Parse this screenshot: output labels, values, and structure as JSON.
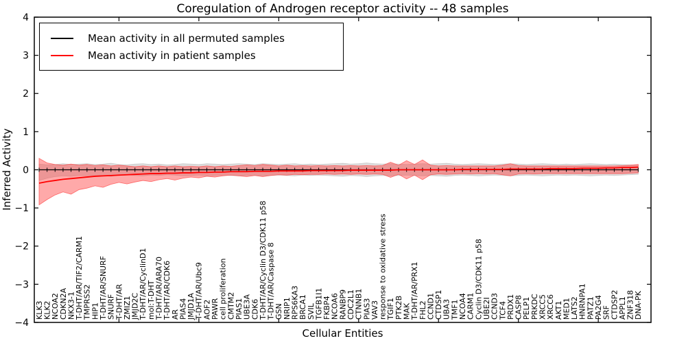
{
  "title": "Coregulation of Androgen receptor activity -- 48 samples",
  "axes": {
    "ylabel": "Inferred Activity",
    "xlabel": "Cellular Entities",
    "yticks": [
      4,
      3,
      2,
      1,
      0,
      -1,
      -2,
      -3,
      -4
    ],
    "ytick_labels": [
      "4",
      "3",
      "2",
      "1",
      "0",
      "−1",
      "−2",
      "−3",
      "−4"
    ]
  },
  "legend": {
    "entries": [
      {
        "label": "Mean activity in all permuted samples",
        "color": "#000000"
      },
      {
        "label": "Mean activity in patient samples",
        "color": "#ff0000"
      }
    ]
  },
  "colors": {
    "frame": "#000000",
    "background": "#ffffff",
    "permuted_line": "#000000",
    "patient_line": "#ff0000",
    "permuted_band": "#9e9e9e",
    "patient_band": "#ff4040"
  },
  "chart_data": {
    "type": "line",
    "title": "Coregulation of Androgen receptor activity -- 48 samples",
    "xlabel": "Cellular Entities",
    "ylabel": "Inferred Activity",
    "ylim": [
      -4,
      4
    ],
    "grid": false,
    "legend_position": "upper left",
    "categories": [
      "KLK3",
      "KLK2",
      "NCOA2",
      "CDKN2A",
      "NKX3-1",
      "T-DHT/AR/TIF2/CARM1",
      "TMPRSS2",
      "HIP1",
      "T-DHT/AR/SNURF",
      "SNURF",
      "T-DHT/AR",
      "ZMIZ1",
      "JMJD2C",
      "T-DHT/AR/CyclinD1",
      "mol:T-DHT",
      "T-DHT/AR/ARA70",
      "T-DHT/AR/CDK6",
      "AR",
      "PIAS4",
      "JMJD1A",
      "T-DHT/AR/Ubc9",
      "AOF2",
      "PAWR",
      "cell proliferation",
      "CMTM2",
      "PIAS1",
      "UBE3A",
      "CDK6",
      "T-DHT/AR/Cyclin D3/CDK11 p58",
      "T-DHT/AR/Caspase 8",
      "GSN",
      "NRIP1",
      "RPS6KA3",
      "BRCA1",
      "SVIL",
      "TGFB1I1",
      "FKBP4",
      "NCOA6",
      "RANBP9",
      "CDC2L1",
      "CTNNB1",
      "PIAS3",
      "VAV3",
      "response to oxidative stress",
      "TGIF1",
      "PTK2B",
      "MAK",
      "T-DHT/AR/PRX1",
      "FHL2",
      "CCND1",
      "CTDSP1",
      "UBA3",
      "TMF1",
      "NCOA4",
      "CARM1",
      "Cyclin D3/CDK11 p58",
      "UBE2I",
      "CCND3",
      "TCF4",
      "PRDX1",
      "CASP8",
      "PELP1",
      "PRKDC",
      "XRCC5",
      "XRCC6",
      "AKT1",
      "MED1",
      "LATS2",
      "HNRNPA1",
      "PATZ1",
      "PA2G4",
      "SRF",
      "CTDSP2",
      "APPL1",
      "ZNF318",
      "DNA-PK"
    ],
    "series": [
      {
        "name": "Mean activity in all permuted samples",
        "color": "#000000",
        "band_color": "#9e9e9e",
        "marker": "vertical-dash",
        "values": [
          0,
          0,
          0,
          0,
          0,
          0,
          0,
          0,
          0,
          0,
          0,
          0,
          0,
          0,
          0,
          0,
          0,
          0,
          0,
          0,
          0,
          0,
          0,
          0,
          0,
          0,
          0,
          0,
          0,
          0,
          0,
          0,
          0,
          0,
          0,
          0,
          0,
          0,
          0,
          0,
          0,
          0,
          0,
          0,
          0,
          0,
          0,
          0,
          0,
          0,
          0,
          0,
          0,
          0,
          0,
          0,
          0,
          0,
          0,
          0,
          0,
          0,
          0,
          0,
          0,
          0,
          0,
          0,
          0,
          0,
          0,
          0,
          0,
          0,
          0,
          0
        ],
        "band_upper": [
          0.15,
          0.13,
          0.14,
          0.16,
          0.14,
          0.15,
          0.16,
          0.14,
          0.15,
          0.17,
          0.14,
          0.13,
          0.15,
          0.16,
          0.14,
          0.15,
          0.13,
          0.14,
          0.16,
          0.15,
          0.14,
          0.16,
          0.15,
          0.14,
          0.15,
          0.16,
          0.15,
          0.14,
          0.16,
          0.15,
          0.14,
          0.15,
          0.16,
          0.14,
          0.15,
          0.14,
          0.15,
          0.16,
          0.17,
          0.15,
          0.16,
          0.18,
          0.16,
          0.15,
          0.16,
          0.15,
          0.14,
          0.15,
          0.16,
          0.15,
          0.16,
          0.17,
          0.15,
          0.14,
          0.15,
          0.16,
          0.15,
          0.14,
          0.15,
          0.16,
          0.15,
          0.14,
          0.15,
          0.16,
          0.15,
          0.14,
          0.15,
          0.14,
          0.15,
          0.16,
          0.15,
          0.14,
          0.15,
          0.14,
          0.13,
          0.12
        ],
        "band_lower": [
          -0.28,
          -0.22,
          -0.18,
          -0.16,
          -0.17,
          -0.15,
          -0.16,
          -0.14,
          -0.15,
          -0.17,
          -0.14,
          -0.13,
          -0.15,
          -0.16,
          -0.14,
          -0.15,
          -0.13,
          -0.14,
          -0.16,
          -0.15,
          -0.14,
          -0.16,
          -0.15,
          -0.14,
          -0.15,
          -0.16,
          -0.15,
          -0.14,
          -0.16,
          -0.15,
          -0.14,
          -0.15,
          -0.16,
          -0.14,
          -0.15,
          -0.14,
          -0.15,
          -0.16,
          -0.17,
          -0.15,
          -0.16,
          -0.18,
          -0.16,
          -0.15,
          -0.16,
          -0.15,
          -0.14,
          -0.15,
          -0.16,
          -0.15,
          -0.16,
          -0.17,
          -0.15,
          -0.14,
          -0.15,
          -0.16,
          -0.15,
          -0.14,
          -0.15,
          -0.16,
          -0.15,
          -0.14,
          -0.15,
          -0.16,
          -0.15,
          -0.14,
          -0.15,
          -0.14,
          -0.15,
          -0.16,
          -0.15,
          -0.14,
          -0.15,
          -0.14,
          -0.13,
          -0.12
        ]
      },
      {
        "name": "Mean activity in patient samples",
        "color": "#ff0000",
        "band_color": "#ff4040",
        "marker": "none",
        "values": [
          -0.35,
          -0.31,
          -0.28,
          -0.25,
          -0.23,
          -0.21,
          -0.19,
          -0.17,
          -0.16,
          -0.15,
          -0.14,
          -0.13,
          -0.12,
          -0.11,
          -0.1,
          -0.1,
          -0.09,
          -0.09,
          -0.08,
          -0.08,
          -0.07,
          -0.07,
          -0.06,
          -0.06,
          -0.05,
          -0.05,
          -0.05,
          -0.04,
          -0.04,
          -0.04,
          -0.03,
          -0.03,
          -0.03,
          -0.03,
          -0.02,
          -0.02,
          -0.02,
          -0.02,
          -0.02,
          -0.01,
          -0.01,
          -0.01,
          -0.01,
          -0.01,
          -0.01,
          0,
          0,
          0,
          0,
          0,
          0,
          0,
          0,
          0.01,
          0.01,
          0.01,
          0.01,
          0.01,
          0.01,
          0.02,
          0.02,
          0.02,
          0.02,
          0.02,
          0.03,
          0.03,
          0.03,
          0.03,
          0.04,
          0.04,
          0.04,
          0.05,
          0.05,
          0.06,
          0.06,
          0.07
        ],
        "band_upper": [
          0.3,
          0.18,
          0.14,
          0.12,
          0.15,
          0.12,
          0.14,
          0.11,
          0.13,
          0.1,
          0.12,
          0.1,
          0.08,
          0.1,
          0.08,
          0.1,
          0.08,
          0.1,
          0.08,
          0.09,
          0.08,
          0.1,
          0.08,
          0.1,
          0.09,
          0.11,
          0.13,
          0.11,
          0.14,
          0.12,
          0.1,
          0.12,
          0.1,
          0.11,
          0.1,
          0.11,
          0.1,
          0.11,
          0.1,
          0.11,
          0.1,
          0.11,
          0.1,
          0.11,
          0.2,
          0.12,
          0.24,
          0.14,
          0.26,
          0.12,
          0.1,
          0.11,
          0.1,
          0.1,
          0.1,
          0.1,
          0.1,
          0.1,
          0.12,
          0.16,
          0.11,
          0.1,
          0.1,
          0.1,
          0.1,
          0.1,
          0.1,
          0.1,
          0.1,
          0.1,
          0.1,
          0.1,
          0.1,
          0.11,
          0.12,
          0.14
        ],
        "band_lower": [
          -0.92,
          -0.78,
          -0.66,
          -0.58,
          -0.64,
          -0.52,
          -0.48,
          -0.42,
          -0.46,
          -0.38,
          -0.33,
          -0.37,
          -0.32,
          -0.28,
          -0.31,
          -0.26,
          -0.23,
          -0.27,
          -0.22,
          -0.19,
          -0.21,
          -0.17,
          -0.19,
          -0.16,
          -0.14,
          -0.16,
          -0.18,
          -0.15,
          -0.18,
          -0.15,
          -0.13,
          -0.14,
          -0.12,
          -0.13,
          -0.12,
          -0.12,
          -0.11,
          -0.12,
          -0.11,
          -0.12,
          -0.11,
          -0.12,
          -0.11,
          -0.12,
          -0.2,
          -0.12,
          -0.24,
          -0.14,
          -0.26,
          -0.13,
          -0.11,
          -0.12,
          -0.11,
          -0.1,
          -0.11,
          -0.1,
          -0.11,
          -0.1,
          -0.13,
          -0.16,
          -0.11,
          -0.1,
          -0.11,
          -0.1,
          -0.1,
          -0.1,
          -0.1,
          -0.1,
          -0.1,
          -0.1,
          -0.1,
          -0.1,
          -0.1,
          -0.1,
          -0.09,
          -0.08
        ]
      }
    ]
  }
}
